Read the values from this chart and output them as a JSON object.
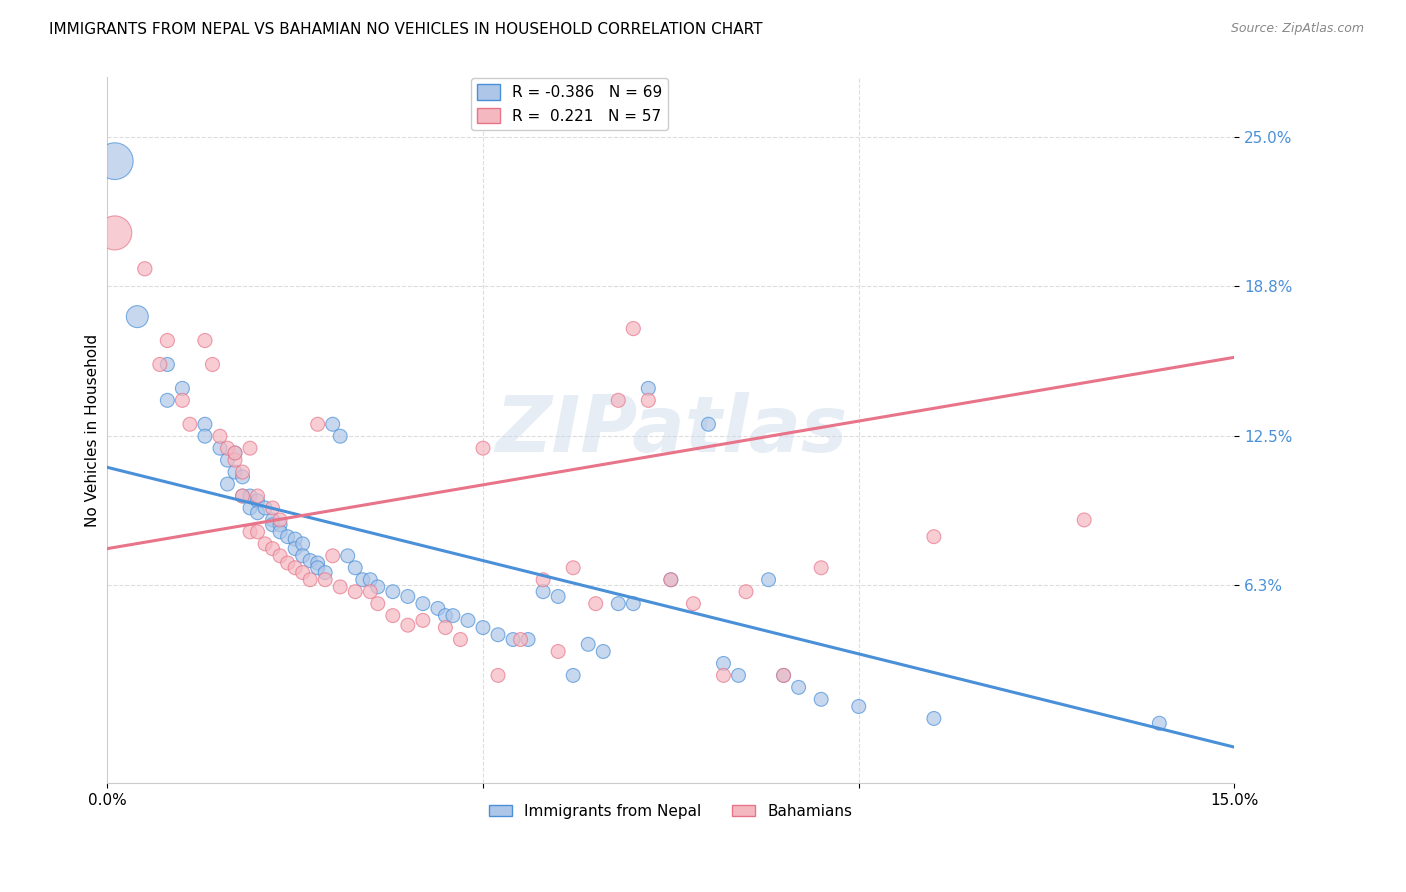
{
  "title": "IMMIGRANTS FROM NEPAL VS BAHAMIAN NO VEHICLES IN HOUSEHOLD CORRELATION CHART",
  "source": "Source: ZipAtlas.com",
  "ylabel": "No Vehicles in Household",
  "ytick_labels": [
    "25.0%",
    "18.8%",
    "12.5%",
    "6.3%"
  ],
  "ytick_positions": [
    0.25,
    0.188,
    0.125,
    0.063
  ],
  "xlim": [
    0.0,
    0.15
  ],
  "ylim": [
    -0.02,
    0.275
  ],
  "legend_entries": [
    {
      "label": "R = -0.386   N = 69",
      "color": "#aec6e8"
    },
    {
      "label": "R =  0.221   N = 57",
      "color": "#f4b8c1"
    }
  ],
  "series1_name": "Immigrants from Nepal",
  "series1_color": "#aec6e8",
  "series1_line_color": "#4a90d9",
  "series2_name": "Bahamians",
  "series2_color": "#f4b8c1",
  "series2_line_color": "#e8748a",
  "watermark": "ZIPatlas",
  "nepal_line": [
    0.0,
    0.112,
    0.15,
    -0.005
  ],
  "bahamas_line": [
    0.0,
    0.078,
    0.15,
    0.158
  ],
  "nepal_points": [
    [
      0.001,
      0.24
    ],
    [
      0.004,
      0.175
    ],
    [
      0.008,
      0.155
    ],
    [
      0.008,
      0.14
    ],
    [
      0.01,
      0.145
    ],
    [
      0.013,
      0.13
    ],
    [
      0.013,
      0.125
    ],
    [
      0.015,
      0.12
    ],
    [
      0.016,
      0.115
    ],
    [
      0.016,
      0.105
    ],
    [
      0.017,
      0.118
    ],
    [
      0.017,
      0.11
    ],
    [
      0.018,
      0.108
    ],
    [
      0.018,
      0.1
    ],
    [
      0.019,
      0.1
    ],
    [
      0.019,
      0.095
    ],
    [
      0.02,
      0.098
    ],
    [
      0.02,
      0.093
    ],
    [
      0.021,
      0.095
    ],
    [
      0.022,
      0.09
    ],
    [
      0.022,
      0.088
    ],
    [
      0.023,
      0.088
    ],
    [
      0.023,
      0.085
    ],
    [
      0.024,
      0.083
    ],
    [
      0.025,
      0.082
    ],
    [
      0.025,
      0.078
    ],
    [
      0.026,
      0.08
    ],
    [
      0.026,
      0.075
    ],
    [
      0.027,
      0.073
    ],
    [
      0.028,
      0.072
    ],
    [
      0.028,
      0.07
    ],
    [
      0.029,
      0.068
    ],
    [
      0.03,
      0.13
    ],
    [
      0.031,
      0.125
    ],
    [
      0.032,
      0.075
    ],
    [
      0.033,
      0.07
    ],
    [
      0.034,
      0.065
    ],
    [
      0.035,
      0.065
    ],
    [
      0.036,
      0.062
    ],
    [
      0.038,
      0.06
    ],
    [
      0.04,
      0.058
    ],
    [
      0.042,
      0.055
    ],
    [
      0.044,
      0.053
    ],
    [
      0.045,
      0.05
    ],
    [
      0.046,
      0.05
    ],
    [
      0.048,
      0.048
    ],
    [
      0.05,
      0.045
    ],
    [
      0.052,
      0.042
    ],
    [
      0.054,
      0.04
    ],
    [
      0.056,
      0.04
    ],
    [
      0.058,
      0.06
    ],
    [
      0.06,
      0.058
    ],
    [
      0.062,
      0.025
    ],
    [
      0.064,
      0.038
    ],
    [
      0.066,
      0.035
    ],
    [
      0.068,
      0.055
    ],
    [
      0.07,
      0.055
    ],
    [
      0.072,
      0.145
    ],
    [
      0.075,
      0.065
    ],
    [
      0.08,
      0.13
    ],
    [
      0.082,
      0.03
    ],
    [
      0.084,
      0.025
    ],
    [
      0.088,
      0.065
    ],
    [
      0.09,
      0.025
    ],
    [
      0.092,
      0.02
    ],
    [
      0.095,
      0.015
    ],
    [
      0.1,
      0.012
    ],
    [
      0.11,
      0.007
    ],
    [
      0.14,
      0.005
    ]
  ],
  "bahamas_points": [
    [
      0.001,
      0.21
    ],
    [
      0.005,
      0.195
    ],
    [
      0.007,
      0.155
    ],
    [
      0.008,
      0.165
    ],
    [
      0.01,
      0.14
    ],
    [
      0.011,
      0.13
    ],
    [
      0.013,
      0.165
    ],
    [
      0.014,
      0.155
    ],
    [
      0.015,
      0.125
    ],
    [
      0.016,
      0.12
    ],
    [
      0.017,
      0.115
    ],
    [
      0.017,
      0.118
    ],
    [
      0.018,
      0.11
    ],
    [
      0.018,
      0.1
    ],
    [
      0.019,
      0.12
    ],
    [
      0.019,
      0.085
    ],
    [
      0.02,
      0.1
    ],
    [
      0.02,
      0.085
    ],
    [
      0.021,
      0.08
    ],
    [
      0.022,
      0.095
    ],
    [
      0.022,
      0.078
    ],
    [
      0.023,
      0.09
    ],
    [
      0.023,
      0.075
    ],
    [
      0.024,
      0.072
    ],
    [
      0.025,
      0.07
    ],
    [
      0.026,
      0.068
    ],
    [
      0.027,
      0.065
    ],
    [
      0.028,
      0.13
    ],
    [
      0.029,
      0.065
    ],
    [
      0.03,
      0.075
    ],
    [
      0.031,
      0.062
    ],
    [
      0.033,
      0.06
    ],
    [
      0.035,
      0.06
    ],
    [
      0.036,
      0.055
    ],
    [
      0.038,
      0.05
    ],
    [
      0.04,
      0.046
    ],
    [
      0.042,
      0.048
    ],
    [
      0.045,
      0.045
    ],
    [
      0.047,
      0.04
    ],
    [
      0.05,
      0.12
    ],
    [
      0.052,
      0.025
    ],
    [
      0.055,
      0.04
    ],
    [
      0.058,
      0.065
    ],
    [
      0.06,
      0.035
    ],
    [
      0.062,
      0.07
    ],
    [
      0.065,
      0.055
    ],
    [
      0.068,
      0.14
    ],
    [
      0.07,
      0.17
    ],
    [
      0.072,
      0.14
    ],
    [
      0.075,
      0.065
    ],
    [
      0.078,
      0.055
    ],
    [
      0.082,
      0.025
    ],
    [
      0.085,
      0.06
    ],
    [
      0.09,
      0.025
    ],
    [
      0.095,
      0.07
    ],
    [
      0.11,
      0.083
    ],
    [
      0.13,
      0.09
    ]
  ]
}
